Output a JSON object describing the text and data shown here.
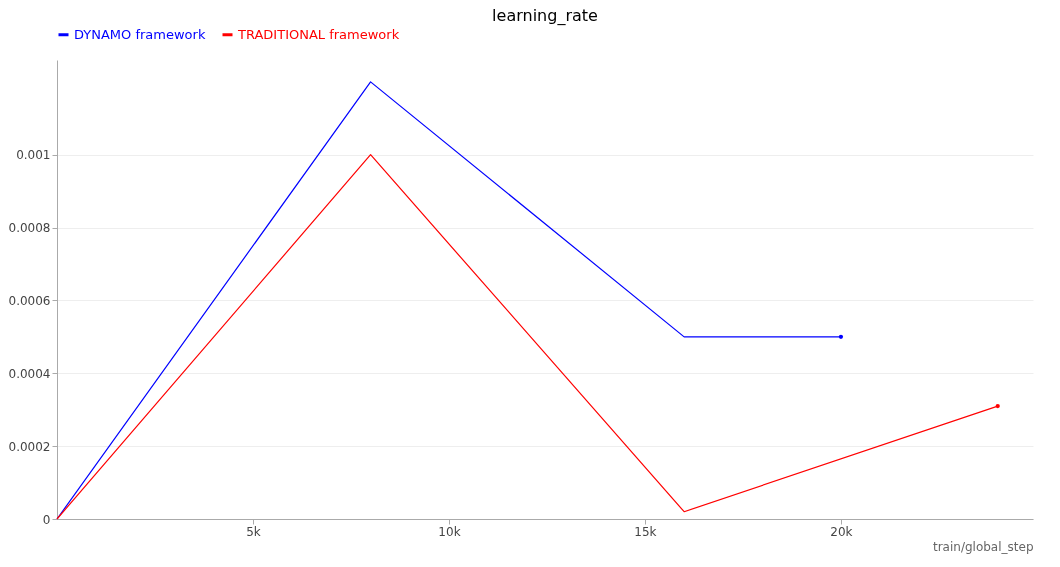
{
  "chart_data": {
    "type": "line",
    "title": "learning_rate",
    "xlabel": "train/global_step",
    "xlim": [
      0,
      24900
    ],
    "xticks": [
      {
        "value": 5000,
        "label": "5k"
      },
      {
        "value": 10000,
        "label": "10k"
      },
      {
        "value": 15000,
        "label": "15k"
      },
      {
        "value": 20000,
        "label": "20k"
      }
    ],
    "ylim": [
      0,
      0.00126
    ],
    "yticks": [
      0,
      0.0002,
      0.0004,
      0.0006,
      0.0008,
      0.001
    ],
    "grid": "y",
    "legend": "top",
    "series": [
      {
        "name": "DYNAMO framework",
        "color": "#0000ff",
        "x": [
          0,
          8000,
          16000,
          20000
        ],
        "values": [
          0,
          0.0012,
          0.0005,
          0.0005
        ]
      },
      {
        "name": "TRADITIONAL framework",
        "color": "#ff0000",
        "x": [
          0,
          8000,
          16000,
          24000
        ],
        "values": [
          0,
          0.001,
          2e-05,
          0.00031
        ]
      }
    ]
  }
}
